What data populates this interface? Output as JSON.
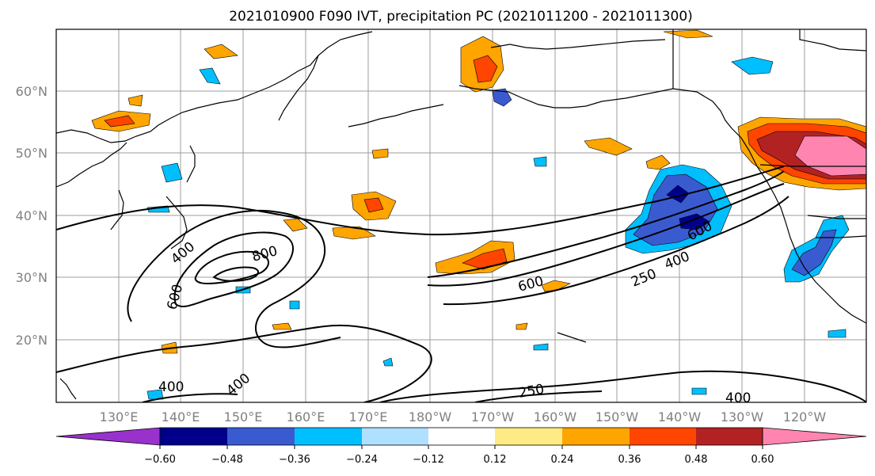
{
  "title": "2021010900 F090 IVT, precipitation PC (2021011200 - 2021011300)",
  "lat_labels": [
    "60°N",
    "50°N",
    "40°N",
    "30°N",
    "20°N"
  ],
  "lon_labels": [
    "130°E",
    "140°E",
    "150°E",
    "160°E",
    "170°E",
    "180°W",
    "170°W",
    "160°W",
    "150°W",
    "140°W",
    "130°W",
    "120°W"
  ],
  "colorbar": {
    "colors": [
      "#9932cc",
      "#00008b",
      "#3a5bd0",
      "#00bfff",
      "#b0e0ff",
      "#ffffff",
      "#ffeb85",
      "#ffa500",
      "#ff4500",
      "#b22222",
      "#ff85b0"
    ],
    "tick_labels": [
      "−0.60",
      "−0.48",
      "−0.36",
      "−0.24",
      "−0.12",
      "0.12",
      "0.24",
      "0.36",
      "0.48",
      "0.60"
    ]
  },
  "contour_labels": [
    "400",
    "800",
    "600",
    "400",
    "600",
    "600",
    "250",
    "400",
    "400",
    "400",
    "250",
    "400"
  ],
  "colors": {
    "grid": "#9e9e9e",
    "coast": "#000000",
    "ivt": "#000000"
  }
}
